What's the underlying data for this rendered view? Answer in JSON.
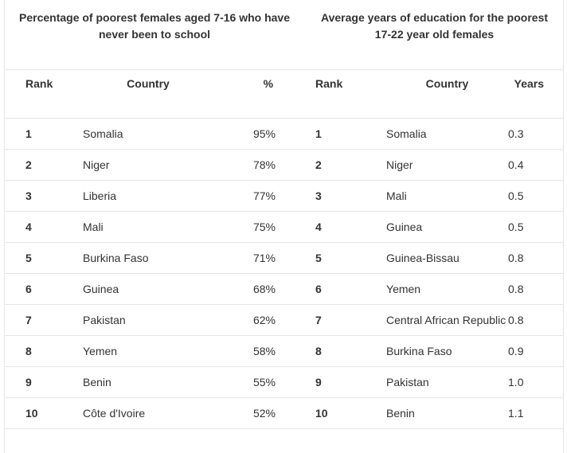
{
  "titles": {
    "left": "Percentage of poorest females aged 7-16 who have never been to school",
    "right": "Average years of education for the poorest 17-22 year old females"
  },
  "headers": {
    "left": {
      "rank": "Rank",
      "country": "Country",
      "value": "%"
    },
    "right": {
      "rank": "Rank",
      "country": "Country",
      "value": "Years"
    }
  },
  "rows": [
    {
      "left_rank": "1",
      "left_country": "Somalia",
      "left_value": "95%",
      "right_rank": "1",
      "right_country": "Somalia",
      "right_value": "0.3"
    },
    {
      "left_rank": "2",
      "left_country": "Niger",
      "left_value": "78%",
      "right_rank": "2",
      "right_country": "Niger",
      "right_value": "0.4"
    },
    {
      "left_rank": "3",
      "left_country": "Liberia",
      "left_value": "77%",
      "right_rank": "3",
      "right_country": "Mali",
      "right_value": "0.5"
    },
    {
      "left_rank": "4",
      "left_country": "Mali",
      "left_value": "75%",
      "right_rank": "4",
      "right_country": "Guinea",
      "right_value": "0.5"
    },
    {
      "left_rank": "5",
      "left_country": "Burkina Faso",
      "left_value": "71%",
      "right_rank": "5",
      "right_country": "Guinea-Bissau",
      "right_value": "0.8"
    },
    {
      "left_rank": "6",
      "left_country": "Guinea",
      "left_value": "68%",
      "right_rank": "6",
      "right_country": "Yemen",
      "right_value": "0.8"
    },
    {
      "left_rank": "7",
      "left_country": "Pakistan",
      "left_value": "62%",
      "right_rank": "7",
      "right_country": "Central African Republic",
      "right_value": "0.8"
    },
    {
      "left_rank": "8",
      "left_country": "Yemen",
      "left_value": "58%",
      "right_rank": "8",
      "right_country": "Burkina Faso",
      "right_value": "0.9"
    },
    {
      "left_rank": "9",
      "left_country": "Benin",
      "left_value": "55%",
      "right_rank": "9",
      "right_country": "Pakistan",
      "right_value": "1.0"
    },
    {
      "left_rank": "10",
      "left_country": "Côte d'Ivoire",
      "left_value": "52%",
      "right_rank": "10",
      "right_country": "Benin",
      "right_value": "1.1"
    }
  ]
}
